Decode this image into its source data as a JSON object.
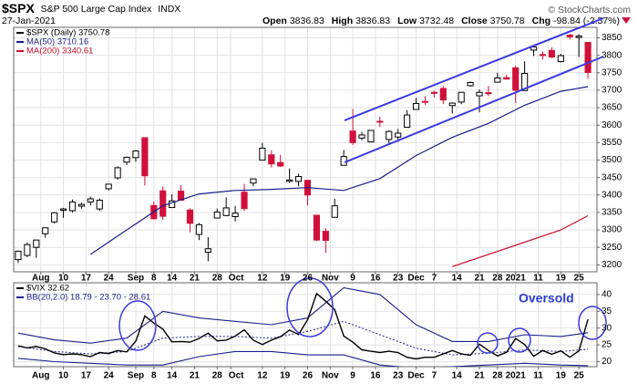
{
  "chart_data": [
    {
      "type": "candlestick",
      "title": "$SPX",
      "subtitle": "S&P 500 Large Cap Index",
      "exchange": "INDX",
      "date": "27-Jan-2021",
      "quote": [
        {
          "label": "Open",
          "value": 3836.83
        },
        {
          "label": "High",
          "value": 3836.83
        },
        {
          "label": "Low",
          "value": 3732.48
        },
        {
          "label": "Close",
          "value": 3750.78
        },
        {
          "label": "Chg",
          "value": "-98.84 (-2.57%)"
        }
      ],
      "source": "© StockCharts.com",
      "name": "$SPX (Daily) 3750.78",
      "up_color": "#000000",
      "down_color": "#d0103a",
      "x": [
        0,
        2,
        4,
        6,
        8,
        10,
        12,
        14,
        16,
        18,
        20,
        22,
        24,
        26,
        28,
        30,
        32,
        34,
        36,
        38,
        40,
        42,
        44,
        46,
        48,
        50,
        52,
        54,
        56,
        58,
        60,
        62,
        64,
        66,
        68,
        70,
        72,
        74,
        76,
        78,
        80,
        82,
        84,
        86,
        88,
        90,
        92,
        94,
        96,
        98,
        100,
        102,
        104,
        106,
        108,
        110,
        112,
        114,
        116,
        118,
        120,
        122,
        124,
        126
      ],
      "open": [
        3215,
        3227,
        3250,
        3289,
        3323,
        3356,
        3355,
        3368,
        3380,
        3360,
        3418,
        3449,
        3494,
        3507,
        3564,
        3370,
        3412,
        3364,
        3411,
        3357,
        3287,
        3236,
        3334,
        3341,
        3338,
        3408,
        3434,
        3500,
        3515,
        3493,
        3439,
        3439,
        3442,
        3342,
        3296,
        3336,
        3485,
        3583,
        3563,
        3552,
        3611,
        3559,
        3566,
        3594,
        3645,
        3668,
        3694,
        3705,
        3656,
        3666,
        3713,
        3684,
        3693,
        3723,
        3736,
        3764,
        3699,
        3815,
        3802,
        3814,
        3782,
        3858,
        3851,
        3836.83
      ],
      "high": [
        3241,
        3264,
        3272,
        3307,
        3351,
        3363,
        3387,
        3378,
        3395,
        3390,
        3432,
        3482,
        3510,
        3528,
        3565,
        3382,
        3425,
        3402,
        3428,
        3362,
        3320,
        3279,
        3361,
        3393,
        3369,
        3432,
        3447,
        3549,
        3528,
        3515,
        3476,
        3461,
        3442,
        3342,
        3305,
        3389,
        3529,
        3646,
        3581,
        3586,
        3624,
        3585,
        3589,
        3643,
        3678,
        3683,
        3698,
        3712,
        3665,
        3695,
        3725,
        3702,
        3712,
        3750,
        3744,
        3770,
        3783,
        3826,
        3811,
        3823,
        3804,
        3861,
        3860,
        3836.83
      ],
      "low": [
        3205,
        3222,
        3220,
        3278,
        3318,
        3335,
        3350,
        3361,
        3370,
        3354,
        3413,
        3444,
        3486,
        3495,
        3427,
        3330,
        3329,
        3363,
        3384,
        3293,
        3271,
        3210,
        3334,
        3340,
        3324,
        3354,
        3425,
        3500,
        3479,
        3480,
        3435,
        3425,
        3370,
        3268,
        3234,
        3336,
        3485,
        3543,
        3557,
        3552,
        3595,
        3543,
        3552,
        3594,
        3645,
        3658,
        3679,
        3660,
        3634,
        3660,
        3710,
        3637,
        3684,
        3723,
        3730,
        3663,
        3705,
        3798,
        3788,
        3792,
        3780,
        3845,
        3795,
        3732.48
      ],
      "close": [
        3239,
        3258,
        3271,
        3306,
        3349,
        3360,
        3380,
        3373,
        3389,
        3385,
        3431,
        3478,
        3508,
        3526,
        3455,
        3332,
        3339,
        3383,
        3385,
        3319,
        3315,
        3246,
        3351,
        3363,
        3348,
        3361,
        3446,
        3534,
        3489,
        3483,
        3443,
        3453,
        3400,
        3271,
        3270,
        3369,
        3510,
        3550,
        3572,
        3585,
        3609,
        3582,
        3577,
        3629,
        3662,
        3666,
        3691,
        3672,
        3663,
        3694,
        3722,
        3694,
        3690,
        3735,
        3732,
        3700,
        3748,
        3824,
        3801,
        3795,
        3799,
        3853,
        3855,
        3750.78
      ],
      "overlays": [
        {
          "name": "MA(50) 3710.16",
          "color": "#1c1c8c",
          "x": [
            0,
            8,
            16,
            24,
            32,
            40,
            48,
            56,
            64,
            72,
            80,
            88,
            96,
            104,
            112,
            120,
            126
          ],
          "values": [
            null,
            null,
            3230,
            3300,
            3369,
            3403,
            3413,
            3416,
            3421,
            3413,
            3447,
            3513,
            3565,
            3605,
            3657,
            3697,
            3710.16
          ]
        },
        {
          "name": "MA(200) 3340.61",
          "color": "#c8102e",
          "x": [
            0,
            8,
            16,
            24,
            32,
            40,
            48,
            56,
            64,
            72,
            80,
            88,
            96,
            104,
            112,
            120,
            126
          ],
          "values": [
            null,
            null,
            null,
            null,
            null,
            null,
            null,
            null,
            null,
            null,
            null,
            null,
            3195,
            3230,
            3265,
            3300,
            3340.61
          ]
        }
      ],
      "xlim": [
        -1,
        128
      ],
      "xticks": [
        {
          "value": 5,
          "label": "Aug"
        },
        {
          "value": 10,
          "label": "10"
        },
        {
          "value": 15,
          "label": "17"
        },
        {
          "value": 20,
          "label": "24"
        },
        {
          "value": 26,
          "label": "Sep"
        },
        {
          "value": 30,
          "label": "8"
        },
        {
          "value": 34,
          "label": "14"
        },
        {
          "value": 39,
          "label": "21"
        },
        {
          "value": 44,
          "label": "28"
        },
        {
          "value": 47,
          "label": "Oct"
        },
        {
          "value": 54,
          "label": "12"
        },
        {
          "value": 59,
          "label": "19"
        },
        {
          "value": 64,
          "label": "26"
        },
        {
          "value": 69,
          "label": "Nov"
        },
        {
          "value": 74,
          "label": "9"
        },
        {
          "value": 79,
          "label": "16"
        },
        {
          "value": 84,
          "label": "23"
        },
        {
          "value": 88,
          "label": "Dec"
        },
        {
          "value": 92,
          "label": "7"
        },
        {
          "value": 97,
          "label": "14"
        },
        {
          "value": 102,
          "label": "21"
        },
        {
          "value": 106,
          "label": "28"
        },
        {
          "value": 110,
          "label": "2021"
        },
        {
          "value": 115,
          "label": "11"
        },
        {
          "value": 120,
          "label": "19"
        },
        {
          "value": 124,
          "label": "25"
        }
      ],
      "ylim": [
        3180,
        3880
      ],
      "yticks": [
        3200,
        3250,
        3300,
        3350,
        3400,
        3450,
        3500,
        3550,
        3600,
        3650,
        3700,
        3750,
        3800,
        3850
      ],
      "grid": true
    },
    {
      "type": "line",
      "name": "$VIX 32.62",
      "color": "#000000",
      "x": [
        0,
        2,
        4,
        6,
        8,
        10,
        12,
        14,
        16,
        18,
        20,
        22,
        24,
        26,
        28,
        30,
        32,
        34,
        36,
        38,
        40,
        42,
        44,
        46,
        48,
        50,
        52,
        54,
        56,
        58,
        60,
        62,
        64,
        66,
        68,
        70,
        72,
        74,
        76,
        78,
        80,
        82,
        84,
        86,
        88,
        90,
        92,
        94,
        96,
        98,
        100,
        102,
        104,
        106,
        108,
        110,
        112,
        114,
        116,
        118,
        120,
        122,
        124,
        126
      ],
      "values": [
        24.7,
        24.1,
        24.5,
        23.8,
        22.6,
        22.1,
        22.3,
        22.1,
        21.5,
        22.7,
        22.4,
        23.3,
        22.9,
        26.1,
        33.6,
        31.5,
        29.7,
        25.9,
        26.0,
        25.8,
        26.9,
        28.5,
        26.2,
        26.4,
        27.6,
        29.5,
        26.4,
        25.1,
        26.4,
        27.4,
        29.4,
        28.1,
        32.5,
        40.3,
        38.0,
        35.5,
        27.6,
        25.8,
        23.5,
        23.1,
        22.7,
        23.1,
        22.7,
        21.3,
        20.8,
        21.3,
        21.3,
        22.3,
        23.3,
        22.3,
        21.9,
        25.2,
        23.3,
        21.7,
        22.8,
        26.9,
        25.1,
        21.6,
        23.3,
        22.2,
        23.2,
        21.3,
        23.2,
        32.6
      ],
      "bands": {
        "name": "BB(20,2.0) 18.79 - 23.70 - 28.61",
        "color": "#1c1c8c",
        "x": [
          0,
          8,
          16,
          24,
          32,
          40,
          48,
          56,
          64,
          72,
          80,
          88,
          96,
          104,
          112,
          120,
          126
        ],
        "upper": [
          28.5,
          26.5,
          25.5,
          27,
          35,
          33,
          32,
          31,
          33,
          42,
          40,
          31,
          26,
          26,
          28,
          27.5,
          28.61
        ],
        "middle": [
          24.5,
          23,
          22.3,
          23,
          27,
          27.5,
          27.5,
          27,
          29,
          32,
          28,
          24,
          22,
          22.5,
          23.5,
          23,
          23.7
        ],
        "lower": [
          21,
          20,
          19.5,
          19,
          19,
          21.5,
          23,
          23,
          22,
          22,
          19,
          18,
          18.5,
          19,
          19.5,
          19,
          18.79
        ]
      },
      "annotation": "Oversold",
      "xlim": [
        -1,
        128
      ],
      "xticks": [
        {
          "value": 5,
          "label": "Aug"
        },
        {
          "value": 10,
          "label": "10"
        },
        {
          "value": 15,
          "label": "17"
        },
        {
          "value": 20,
          "label": "24"
        },
        {
          "value": 26,
          "label": "Sep"
        },
        {
          "value": 30,
          "label": "8"
        },
        {
          "value": 34,
          "label": "14"
        },
        {
          "value": 39,
          "label": "21"
        },
        {
          "value": 44,
          "label": "28"
        },
        {
          "value": 47,
          "label": "Oct"
        },
        {
          "value": 54,
          "label": "12"
        },
        {
          "value": 59,
          "label": "19"
        },
        {
          "value": 64,
          "label": "26"
        },
        {
          "value": 69,
          "label": "Nov"
        },
        {
          "value": 74,
          "label": "9"
        },
        {
          "value": 79,
          "label": "16"
        },
        {
          "value": 84,
          "label": "23"
        },
        {
          "value": 88,
          "label": "Dec"
        },
        {
          "value": 92,
          "label": "7"
        },
        {
          "value": 97,
          "label": "14"
        },
        {
          "value": 102,
          "label": "21"
        },
        {
          "value": 106,
          "label": "28"
        },
        {
          "value": 110,
          "label": "2021"
        },
        {
          "value": 115,
          "label": "11"
        },
        {
          "value": 120,
          "label": "19"
        },
        {
          "value": 124,
          "label": "25"
        }
      ],
      "ylim": [
        18.5,
        43.5
      ],
      "yticks": [
        20,
        25,
        30,
        35,
        40
      ],
      "grid": true
    }
  ]
}
